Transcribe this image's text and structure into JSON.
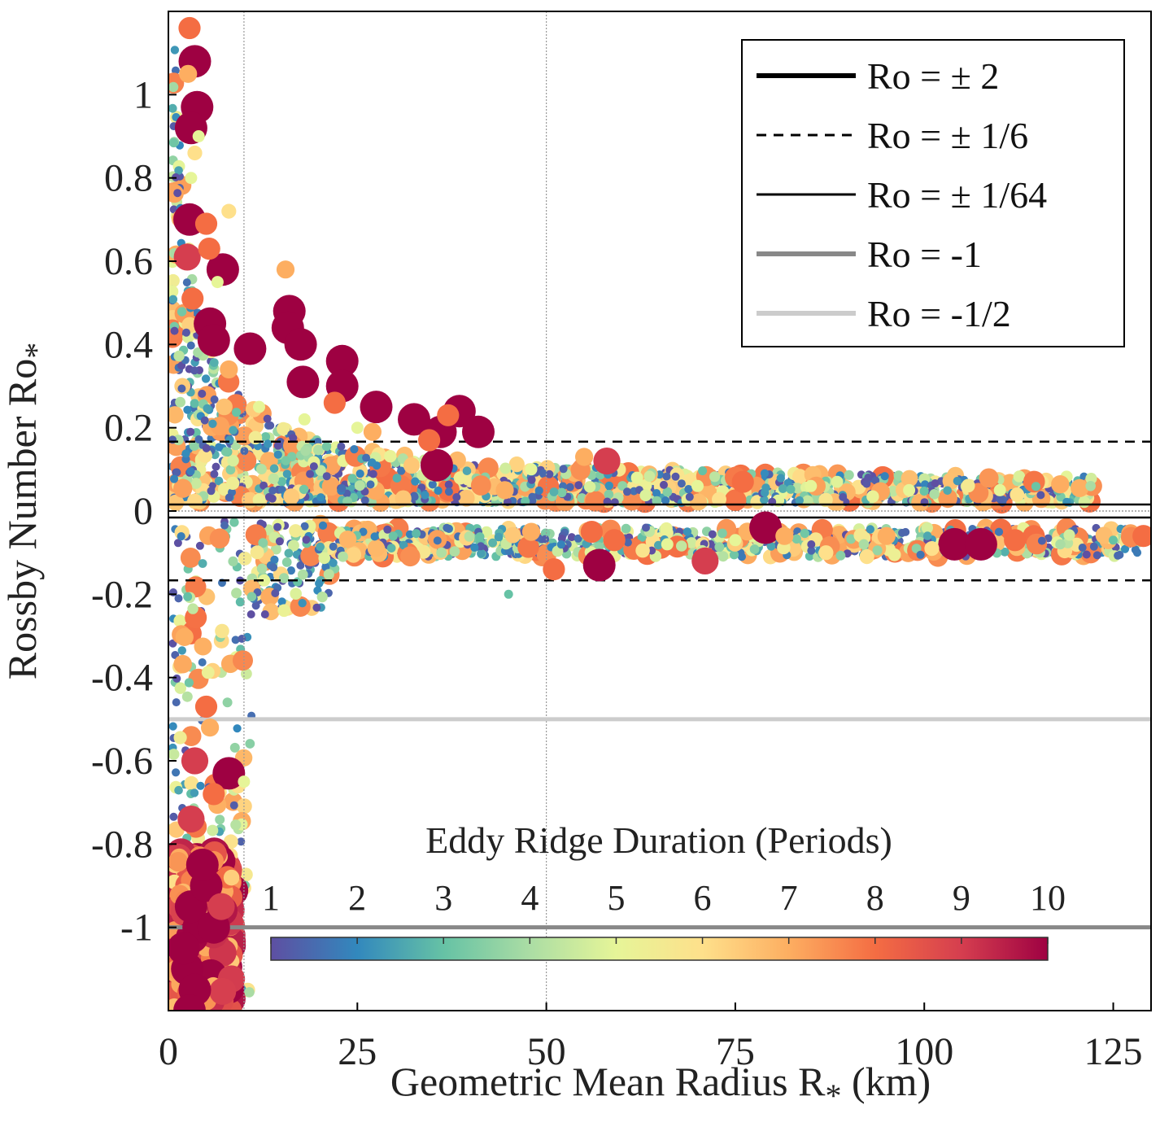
{
  "chart_data": {
    "type": "scatter",
    "title": "",
    "xlabel": "Geometric Mean Radius R",
    "xlabel_sub": "*",
    "xlabel_unit": " (km)",
    "ylabel": "Rossby Number Ro",
    "ylabel_sub": "*",
    "xlim": [
      0,
      130
    ],
    "ylim": [
      -1.2,
      1.2
    ],
    "x_ticks": [
      {
        "value": 0,
        "label": "0"
      },
      {
        "value": 25,
        "label": "25"
      },
      {
        "value": 50,
        "label": "50"
      },
      {
        "value": 75,
        "label": "75"
      },
      {
        "value": 100,
        "label": "100"
      },
      {
        "value": 125,
        "label": "125"
      }
    ],
    "y_ticks": [
      {
        "value": 1,
        "label": "1"
      },
      {
        "value": 0.8,
        "label": "0.8"
      },
      {
        "value": 0.6,
        "label": "0.6"
      },
      {
        "value": 0.4,
        "label": "0.4"
      },
      {
        "value": 0.2,
        "label": "0.2"
      },
      {
        "value": 0,
        "label": "0"
      },
      {
        "value": -0.2,
        "label": "-0.2"
      },
      {
        "value": -0.4,
        "label": "-0.4"
      },
      {
        "value": -0.6,
        "label": "-0.6"
      },
      {
        "value": -0.8,
        "label": "-0.8"
      },
      {
        "value": -1,
        "label": "-1"
      }
    ],
    "vertical_grid_x": [
      10,
      50
    ],
    "legend_placement": "top-right",
    "legend": [
      {
        "label": "Ro = ± 2",
        "style": "solid-thick",
        "color": "#000000"
      },
      {
        "label": "Ro = ± 1/6",
        "style": "dashed",
        "color": "#000000"
      },
      {
        "label": "Ro = ± 1/64",
        "style": "solid-thin",
        "color": "#000000"
      },
      {
        "label": "Ro = -1",
        "style": "solid-thick",
        "color": "#888888"
      },
      {
        "label": "Ro = -1/2",
        "style": "solid-thick",
        "color": "#cccccc"
      }
    ],
    "reference_lines": [
      {
        "y": 0.1667,
        "style": "dashed",
        "color": "#000000"
      },
      {
        "y": -0.1667,
        "style": "dashed",
        "color": "#000000"
      },
      {
        "y": 0.0156,
        "style": "solid-thin",
        "color": "#000000"
      },
      {
        "y": -0.0156,
        "style": "solid-thin",
        "color": "#000000"
      },
      {
        "y": -1,
        "style": "solid-thick",
        "color": "#888888"
      },
      {
        "y": -0.5,
        "style": "solid-thick",
        "color": "#cccccc"
      }
    ],
    "colorbar": {
      "title": "Eddy Ridge Duration (Periods)",
      "ticks": [
        "1",
        "2",
        "3",
        "4",
        "5",
        "6",
        "7",
        "8",
        "9",
        "10"
      ],
      "range": [
        1,
        10
      ],
      "colors": [
        "#5e4fa2",
        "#3288bd",
        "#66c2a5",
        "#abdda4",
        "#e6f598",
        "#fee08b",
        "#fdae61",
        "#f46d43",
        "#d53e4f",
        "#9e0142"
      ]
    },
    "series": [
      {
        "name": "",
        "points_note": "x: radius (km), y: Rossby number, d: duration (periods)",
        "points": [
          {
            "x": 3.5,
            "y": 1.08,
            "d": 10
          },
          {
            "x": 3.8,
            "y": 0.97,
            "d": 10
          },
          {
            "x": 3.0,
            "y": 0.92,
            "d": 10
          },
          {
            "x": 2.8,
            "y": 0.7,
            "d": 10
          },
          {
            "x": 7.2,
            "y": 0.58,
            "d": 10
          },
          {
            "x": 5.5,
            "y": 0.45,
            "d": 10
          },
          {
            "x": 6.0,
            "y": 0.41,
            "d": 10
          },
          {
            "x": 10.8,
            "y": 0.39,
            "d": 10
          },
          {
            "x": 16.0,
            "y": 0.48,
            "d": 10
          },
          {
            "x": 15.8,
            "y": 0.44,
            "d": 10
          },
          {
            "x": 17.5,
            "y": 0.4,
            "d": 10
          },
          {
            "x": 17.8,
            "y": 0.31,
            "d": 10
          },
          {
            "x": 23.0,
            "y": 0.36,
            "d": 10
          },
          {
            "x": 23.0,
            "y": 0.3,
            "d": 10
          },
          {
            "x": 27.5,
            "y": 0.25,
            "d": 10
          },
          {
            "x": 32.5,
            "y": 0.22,
            "d": 10
          },
          {
            "x": 38.5,
            "y": 0.24,
            "d": 10
          },
          {
            "x": 36.0,
            "y": 0.19,
            "d": 10
          },
          {
            "x": 41.0,
            "y": 0.19,
            "d": 10
          },
          {
            "x": 35.5,
            "y": 0.11,
            "d": 10
          },
          {
            "x": 58.0,
            "y": 0.12,
            "d": 9
          },
          {
            "x": 2.5,
            "y": 0.61,
            "d": 9
          },
          {
            "x": 2.8,
            "y": 1.16,
            "d": 8
          },
          {
            "x": 2.6,
            "y": 1.05,
            "d": 7
          },
          {
            "x": 5.0,
            "y": 0.69,
            "d": 8
          },
          {
            "x": 5.4,
            "y": 0.63,
            "d": 8
          },
          {
            "x": 3.2,
            "y": 0.51,
            "d": 8
          },
          {
            "x": 15.5,
            "y": 0.58,
            "d": 7
          },
          {
            "x": 8.0,
            "y": 0.34,
            "d": 7
          },
          {
            "x": 22.0,
            "y": 0.26,
            "d": 8
          },
          {
            "x": 37.0,
            "y": 0.23,
            "d": 8
          },
          {
            "x": 34.5,
            "y": 0.17,
            "d": 8
          },
          {
            "x": 44.5,
            "y": 0.05,
            "d": 7
          },
          {
            "x": 55.0,
            "y": 0.13,
            "d": 7
          },
          {
            "x": 76.0,
            "y": 0.07,
            "d": 8
          },
          {
            "x": 27.0,
            "y": 0.19,
            "d": 7
          },
          {
            "x": 4.0,
            "y": 0.9,
            "d": 5
          },
          {
            "x": 3.0,
            "y": 0.8,
            "d": 5
          },
          {
            "x": 6.5,
            "y": 0.55,
            "d": 5
          },
          {
            "x": 12.0,
            "y": 0.25,
            "d": 5
          },
          {
            "x": 18.0,
            "y": 0.22,
            "d": 5
          },
          {
            "x": 25.0,
            "y": 0.2,
            "d": 5
          },
          {
            "x": 48.0,
            "y": 0.1,
            "d": 5
          },
          {
            "x": 62.0,
            "y": 0.08,
            "d": 5
          },
          {
            "x": 70.0,
            "y": 0.06,
            "d": 5
          },
          {
            "x": 85.0,
            "y": 0.06,
            "d": 5
          },
          {
            "x": 98.0,
            "y": 0.05,
            "d": 5
          },
          {
            "x": 110.0,
            "y": 0.05,
            "d": 5
          },
          {
            "x": 122.0,
            "y": 0.06,
            "d": 4
          },
          {
            "x": 8.0,
            "y": 0.72,
            "d": 6
          },
          {
            "x": 3.5,
            "y": 0.86,
            "d": 6
          },
          {
            "x": 79.0,
            "y": -0.04,
            "d": 10
          },
          {
            "x": 104.0,
            "y": -0.08,
            "d": 10
          },
          {
            "x": 107.5,
            "y": -0.08,
            "d": 10
          },
          {
            "x": 57.0,
            "y": -0.13,
            "d": 10
          },
          {
            "x": 71.0,
            "y": -0.12,
            "d": 9
          },
          {
            "x": 56.0,
            "y": -0.05,
            "d": 8
          },
          {
            "x": 59.0,
            "y": -0.07,
            "d": 8
          },
          {
            "x": 51.0,
            "y": -0.14,
            "d": 8
          },
          {
            "x": 48.0,
            "y": -0.05,
            "d": 7
          },
          {
            "x": 95.0,
            "y": -0.06,
            "d": 7
          },
          {
            "x": 112.0,
            "y": -0.07,
            "d": 8
          },
          {
            "x": 129.0,
            "y": -0.06,
            "d": 8
          },
          {
            "x": 81.5,
            "y": -0.06,
            "d": 7
          },
          {
            "x": 87.0,
            "y": -0.1,
            "d": 6
          },
          {
            "x": 101.0,
            "y": -0.09,
            "d": 6
          },
          {
            "x": 66.0,
            "y": -0.08,
            "d": 5
          },
          {
            "x": 75.0,
            "y": -0.07,
            "d": 5
          },
          {
            "x": 92.0,
            "y": -0.08,
            "d": 4
          },
          {
            "x": 118.0,
            "y": -0.08,
            "d": 4
          },
          {
            "x": 125.0,
            "y": -0.07,
            "d": 3
          },
          {
            "x": 45.0,
            "y": -0.2,
            "d": 3
          },
          {
            "x": 5.0,
            "y": -0.47,
            "d": 8
          },
          {
            "x": 3.5,
            "y": -0.6,
            "d": 9
          },
          {
            "x": 8.0,
            "y": -0.63,
            "d": 10
          },
          {
            "x": 6.0,
            "y": -0.68,
            "d": 8
          },
          {
            "x": 3.0,
            "y": -0.74,
            "d": 9
          },
          {
            "x": 5.5,
            "y": -0.52,
            "d": 7
          },
          {
            "x": 10.0,
            "y": -0.65,
            "d": 5
          },
          {
            "x": 4.0,
            "y": -1.0,
            "d": 10
          },
          {
            "x": 3.0,
            "y": -0.95,
            "d": 10
          },
          {
            "x": 2.5,
            "y": -1.1,
            "d": 10
          },
          {
            "x": 5.0,
            "y": -0.9,
            "d": 10
          },
          {
            "x": 2.0,
            "y": -1.05,
            "d": 10
          },
          {
            "x": 3.5,
            "y": -1.15,
            "d": 10
          },
          {
            "x": 4.5,
            "y": -0.85,
            "d": 10
          },
          {
            "x": 6.0,
            "y": -1.0,
            "d": 10
          },
          {
            "x": 2.8,
            "y": -1.2,
            "d": 10
          },
          {
            "x": 7.0,
            "y": -0.95,
            "d": 9
          }
        ]
      }
    ]
  }
}
